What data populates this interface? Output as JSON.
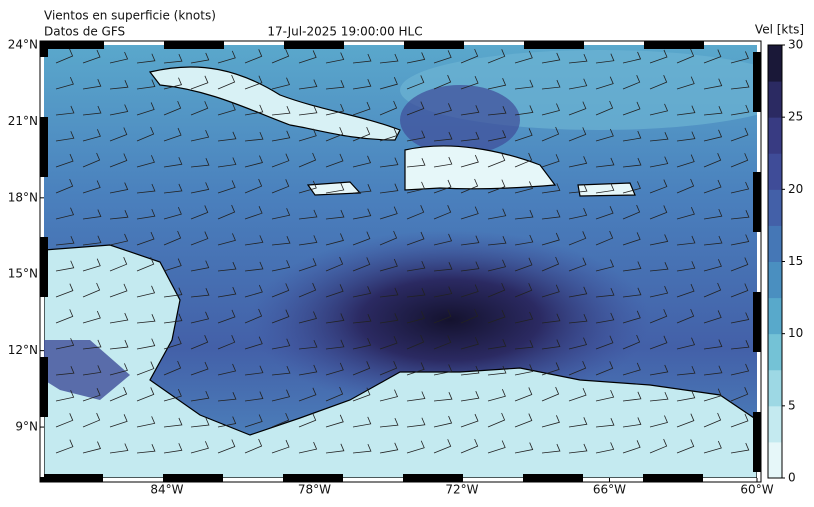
{
  "map": {
    "title": "Vientos en superficie (knots)",
    "subtitle": "Datos de GFS",
    "timestamp": "17-Jul-2025 19:00:00  HLC",
    "colorbar_label": "Vel [kts]",
    "latlim": [
      7,
      24
    ],
    "lonlim": [
      -89,
      -60
    ],
    "lat_ticks": [
      {
        "value": 24,
        "label": "24°N"
      },
      {
        "value": 21,
        "label": "21°N"
      },
      {
        "value": 18,
        "label": "18°N"
      },
      {
        "value": 15,
        "label": "15°N"
      },
      {
        "value": 12,
        "label": "12°N"
      },
      {
        "value": 9,
        "label": "9°N"
      }
    ],
    "lon_ticks": [
      {
        "value": -84,
        "label": "84°W"
      },
      {
        "value": -78,
        "label": "78°W"
      },
      {
        "value": -72,
        "label": "72°W"
      },
      {
        "value": -66,
        "label": "66°W"
      },
      {
        "value": -60,
        "label": "60°W"
      }
    ],
    "colorbar": {
      "lim": [
        0,
        30
      ],
      "ticks": [
        0,
        5,
        10,
        15,
        20,
        25,
        30
      ],
      "colors": [
        "#e6f7f9",
        "#c4eaf0",
        "#9dd8e4",
        "#74c2d6",
        "#58a9cb",
        "#4a8fc0",
        "#4577b6",
        "#4360a8",
        "#3f4c98",
        "#383b82",
        "#2b2a62",
        "#1a1838"
      ]
    }
  }
}
